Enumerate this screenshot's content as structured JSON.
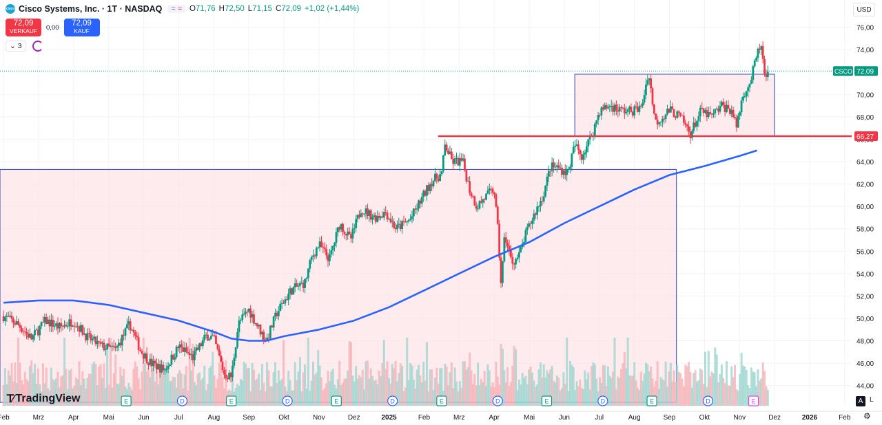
{
  "header": {
    "title": "Cisco Systems, Inc. · 1T · NASDAQ",
    "badge_left": "=",
    "badge_right": "≈",
    "ohlc": [
      {
        "k": "O",
        "v": "71,76"
      },
      {
        "k": "H",
        "v": "72,50"
      },
      {
        "k": "L",
        "v": "71,15"
      },
      {
        "k": "C",
        "v": "72,09"
      },
      {
        "k": "",
        "v": "+1,02 (+1,44%)"
      }
    ]
  },
  "trade": {
    "sell_price": "72,09",
    "sell_label": "VERKAUF",
    "spread": "0,00",
    "buy_price": "72,09",
    "buy_label": "KAUF"
  },
  "indicators": {
    "count": "3"
  },
  "currency": "USD",
  "brand": "TradingView",
  "controls": {
    "auto": "A",
    "log": "L"
  },
  "colors": {
    "up": "#089981",
    "down": "#f23645",
    "ma": "#2962ff",
    "box_fill": "#fce4e7",
    "box_border": "#2a3fbf",
    "level": "#f23645"
  },
  "chart_data": {
    "type": "candlestick",
    "symbol_tag": "CSCO",
    "last_price": "72,09",
    "level_label": "66,27",
    "y_ticks": [
      "44,00",
      "46,00",
      "48,00",
      "50,00",
      "52,00",
      "54,00",
      "56,00",
      "58,00",
      "60,00",
      "62,00",
      "64,00",
      "66,00",
      "68,00",
      "70,00",
      "72,00",
      "74,00",
      "76,00"
    ],
    "x_ticks": [
      {
        "label": "Feb",
        "t": 0.0
      },
      {
        "label": "Mrz",
        "t": 1.0
      },
      {
        "label": "Apr",
        "t": 2.0
      },
      {
        "label": "Mai",
        "t": 3.0
      },
      {
        "label": "Jun",
        "t": 4.0
      },
      {
        "label": "Jul",
        "t": 5.0
      },
      {
        "label": "Aug",
        "t": 6.0
      },
      {
        "label": "Sep",
        "t": 7.0
      },
      {
        "label": "Okt",
        "t": 8.0
      },
      {
        "label": "Nov",
        "t": 9.0
      },
      {
        "label": "Dez",
        "t": 10.0
      },
      {
        "label": "2025",
        "t": 11.0
      },
      {
        "label": "Feb",
        "t": 12.0
      },
      {
        "label": "Mrz",
        "t": 13.0
      },
      {
        "label": "Apr",
        "t": 14.0
      },
      {
        "label": "Mai",
        "t": 15.0
      },
      {
        "label": "Jun",
        "t": 16.0
      },
      {
        "label": "Jul",
        "t": 17.0
      },
      {
        "label": "Aug",
        "t": 18.0
      },
      {
        "label": "Sep",
        "t": 19.0
      },
      {
        "label": "Okt",
        "t": 20.0
      },
      {
        "label": "Nov",
        "t": 21.0
      },
      {
        "label": "Dez",
        "t": 22.0
      },
      {
        "label": "2026",
        "t": 23.0
      },
      {
        "label": "Feb",
        "t": 24.0
      }
    ],
    "price_path": [
      [
        0.0,
        50.2
      ],
      [
        0.4,
        49.5
      ],
      [
        0.8,
        48.2
      ],
      [
        1.2,
        49.8
      ],
      [
        1.6,
        49.2
      ],
      [
        2.0,
        49.8
      ],
      [
        2.4,
        48.3
      ],
      [
        2.8,
        47.5
      ],
      [
        3.2,
        47.2
      ],
      [
        3.6,
        49.5
      ],
      [
        3.9,
        47.2
      ],
      [
        4.2,
        46.0
      ],
      [
        4.6,
        45.4
      ],
      [
        5.0,
        47.5
      ],
      [
        5.4,
        46.5
      ],
      [
        5.8,
        48.5
      ],
      [
        6.0,
        48.2
      ],
      [
        6.3,
        45.0
      ],
      [
        6.5,
        44.8
      ],
      [
        6.7,
        49.5
      ],
      [
        7.0,
        50.8
      ],
      [
        7.2,
        49.6
      ],
      [
        7.5,
        48.0
      ],
      [
        7.8,
        50.5
      ],
      [
        8.2,
        52.5
      ],
      [
        8.6,
        53.2
      ],
      [
        8.8,
        55.5
      ],
      [
        9.0,
        56.6
      ],
      [
        9.3,
        55.3
      ],
      [
        9.6,
        58.5
      ],
      [
        9.9,
        57.0
      ],
      [
        10.2,
        59.8
      ],
      [
        10.6,
        59.0
      ],
      [
        10.9,
        59.5
      ],
      [
        11.2,
        58.0
      ],
      [
        11.6,
        58.8
      ],
      [
        11.9,
        60.5
      ],
      [
        12.2,
        62.2
      ],
      [
        12.5,
        62.9
      ],
      [
        12.6,
        65.5
      ],
      [
        12.8,
        64.0
      ],
      [
        13.1,
        64.0
      ],
      [
        13.3,
        61.5
      ],
      [
        13.5,
        60.0
      ],
      [
        13.8,
        61.0
      ],
      [
        14.0,
        61.5
      ],
      [
        14.1,
        58.0
      ],
      [
        14.2,
        53.0
      ],
      [
        14.3,
        57.5
      ],
      [
        14.5,
        55.0
      ],
      [
        14.7,
        55.5
      ],
      [
        14.9,
        57.5
      ],
      [
        15.1,
        59.0
      ],
      [
        15.4,
        61.0
      ],
      [
        15.6,
        63.5
      ],
      [
        15.8,
        63.5
      ],
      [
        16.1,
        63.0
      ],
      [
        16.3,
        65.5
      ],
      [
        16.5,
        64.5
      ],
      [
        16.8,
        66.5
      ],
      [
        17.0,
        68.5
      ],
      [
        17.3,
        69.0
      ],
      [
        17.6,
        68.6
      ],
      [
        17.9,
        68.5
      ],
      [
        18.2,
        68.8
      ],
      [
        18.4,
        72.0
      ],
      [
        18.6,
        67.5
      ],
      [
        18.8,
        68.0
      ],
      [
        19.0,
        68.6
      ],
      [
        19.3,
        68.0
      ],
      [
        19.6,
        66.5
      ],
      [
        19.9,
        68.5
      ],
      [
        20.2,
        68.0
      ],
      [
        20.5,
        69.0
      ],
      [
        20.8,
        68.5
      ],
      [
        20.9,
        67.0
      ],
      [
        21.1,
        70.0
      ],
      [
        21.3,
        71.0
      ],
      [
        21.5,
        73.5
      ],
      [
        21.6,
        74.5
      ],
      [
        21.75,
        71.0
      ],
      [
        21.85,
        72.1
      ]
    ],
    "ma_path": [
      [
        0.0,
        51.4
      ],
      [
        1.0,
        51.6
      ],
      [
        2.0,
        51.6
      ],
      [
        3.0,
        51.2
      ],
      [
        4.0,
        50.5
      ],
      [
        5.0,
        49.8
      ],
      [
        6.0,
        48.8
      ],
      [
        6.5,
        48.2
      ],
      [
        7.0,
        48.0
      ],
      [
        7.5,
        48.0
      ],
      [
        8.0,
        48.4
      ],
      [
        9.0,
        49.0
      ],
      [
        10.0,
        49.8
      ],
      [
        11.0,
        51.0
      ],
      [
        12.0,
        52.5
      ],
      [
        13.0,
        54.0
      ],
      [
        14.0,
        55.5
      ],
      [
        15.0,
        56.8
      ],
      [
        16.0,
        58.5
      ],
      [
        17.0,
        60.0
      ],
      [
        18.0,
        61.5
      ],
      [
        19.0,
        62.8
      ],
      [
        20.0,
        63.6
      ],
      [
        21.0,
        64.5
      ],
      [
        21.5,
        65.0
      ]
    ],
    "boxes": [
      {
        "t0": -0.1,
        "t1": 19.2,
        "p0": 42.5,
        "p1": 63.3
      },
      {
        "t0": 16.3,
        "t1": 22.0,
        "p0": 66.3,
        "p1": 71.8
      }
    ],
    "level": {
      "t0": 12.4,
      "price": 66.27
    },
    "events": [
      {
        "label": "E",
        "t": 3.5,
        "kind": "earnings"
      },
      {
        "label": "D",
        "t": 5.1,
        "kind": "dividend"
      },
      {
        "label": "E",
        "t": 6.5,
        "kind": "earnings"
      },
      {
        "label": "D",
        "t": 8.1,
        "kind": "dividend"
      },
      {
        "label": "E",
        "t": 9.5,
        "kind": "earnings"
      },
      {
        "label": "D",
        "t": 11.1,
        "kind": "dividend"
      },
      {
        "label": "E",
        "t": 12.5,
        "kind": "earnings"
      },
      {
        "label": "D",
        "t": 14.1,
        "kind": "dividend"
      },
      {
        "label": "E",
        "t": 15.5,
        "kind": "earnings"
      },
      {
        "label": "D",
        "t": 17.1,
        "kind": "dividend"
      },
      {
        "label": "E",
        "t": 18.5,
        "kind": "earnings"
      },
      {
        "label": "D",
        "t": 20.1,
        "kind": "dividend"
      },
      {
        "label": "E",
        "t": 21.4,
        "kind": "earnings-upcoming"
      }
    ]
  }
}
